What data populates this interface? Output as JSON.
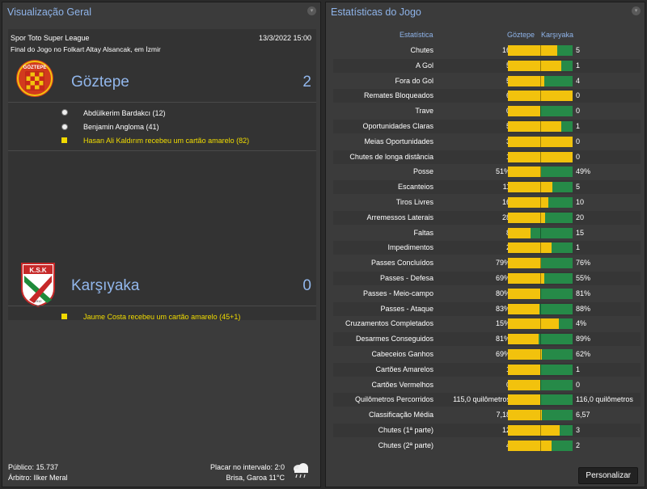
{
  "colors": {
    "accent": "#8fb4ea",
    "bar_home": "#f2c20d",
    "bar_away": "#268a48",
    "card_yellow": "#f1d900"
  },
  "overview": {
    "title": "Visualização Geral",
    "competition": "Spor Toto Super League",
    "datetime": "13/3/2022 15:00",
    "venue": "Final do Jogo no Folkart Altay Alsancak, em İzmir",
    "home": {
      "name": "Göztepe",
      "crest_text": "GÖZTEPE",
      "score": "2",
      "events": [
        {
          "icon": "ball-icon",
          "text": "Abdülkerim Bardakcı (12)",
          "highlight": false
        },
        {
          "icon": "ball-icon",
          "text": "Benjamin Angloma (41)",
          "highlight": false
        },
        {
          "icon": "yellow-card-icon",
          "text": "Hasan Ali Kaldırım recebeu um cartão amarelo (82)",
          "highlight": true
        }
      ]
    },
    "away": {
      "name": "Karşıyaka",
      "crest_text": "K.S.K",
      "crest_year": "1912",
      "score": "0",
      "events": [
        {
          "icon": "yellow-card-icon",
          "text": "Jaume Costa recebeu um cartão amarelo (45+1)",
          "highlight": true
        }
      ]
    },
    "footer": {
      "attendance": "Público: 15.737",
      "referee": "Árbitro: Ilker Meral",
      "halftime": "Placar no intervalo: 2:0",
      "weather": "Brisa, Garoa 11°C"
    }
  },
  "stats": {
    "title": "Estatísticas do Jogo",
    "header_label": "Estatística",
    "header_home": "Göztepe",
    "header_away": "Karşıyaka",
    "customize_label": "Personalizar",
    "rows": [
      {
        "label": "Chutes",
        "home": "16",
        "away": "5",
        "home_share": 0.76
      },
      {
        "label": "A Gol",
        "home": "5",
        "away": "1",
        "home_share": 0.83
      },
      {
        "label": "Fora do Gol",
        "home": "5",
        "away": "4",
        "home_share": 0.56
      },
      {
        "label": "Remates Bloqueados",
        "home": "6",
        "away": "0",
        "home_share": 1.0
      },
      {
        "label": "Trave",
        "home": "0",
        "away": "0",
        "home_share": 0.5
      },
      {
        "label": "Oportunidades Claras",
        "home": "5",
        "away": "1",
        "home_share": 0.83
      },
      {
        "label": "Meias Oportunidades",
        "home": "3",
        "away": "0",
        "home_share": 1.0
      },
      {
        "label": "Chutes de longa distância",
        "home": "1",
        "away": "0",
        "home_share": 1.0
      },
      {
        "label": "Posse",
        "home": "51%",
        "away": "49%",
        "home_share": 0.51
      },
      {
        "label": "Escanteios",
        "home": "11",
        "away": "5",
        "home_share": 0.69
      },
      {
        "label": "Tiros Livres",
        "home": "16",
        "away": "10",
        "home_share": 0.62
      },
      {
        "label": "Arremessos Laterais",
        "home": "28",
        "away": "20",
        "home_share": 0.58
      },
      {
        "label": "Faltas",
        "home": "8",
        "away": "15",
        "home_share": 0.35
      },
      {
        "label": "Impedimentos",
        "home": "2",
        "away": "1",
        "home_share": 0.67
      },
      {
        "label": "Passes Concluídos",
        "home": "79%",
        "away": "76%",
        "home_share": 0.51
      },
      {
        "label": "Passes - Defesa",
        "home": "69%",
        "away": "55%",
        "home_share": 0.56
      },
      {
        "label": "Passes - Meio-campo",
        "home": "80%",
        "away": "81%",
        "home_share": 0.5
      },
      {
        "label": "Passes - Ataque",
        "home": "83%",
        "away": "88%",
        "home_share": 0.49
      },
      {
        "label": "Cruzamentos Completados",
        "home": "15%",
        "away": "4%",
        "home_share": 0.79
      },
      {
        "label": "Desarmes Conseguidos",
        "home": "81%",
        "away": "89%",
        "home_share": 0.48
      },
      {
        "label": "Cabeceios Ganhos",
        "home": "69%",
        "away": "62%",
        "home_share": 0.53
      },
      {
        "label": "Cartões Amarelos",
        "home": "1",
        "away": "1",
        "home_share": 0.5
      },
      {
        "label": "Cartões Vermelhos",
        "home": "0",
        "away": "0",
        "home_share": 0.5
      },
      {
        "label": "Quilômetros Percorridos",
        "home": "115,0 quilômetros",
        "away": "116,0 quilômetros",
        "home_share": 0.5
      },
      {
        "label": "Classificação Média",
        "home": "7,18",
        "away": "6,57",
        "home_share": 0.52
      },
      {
        "label": "Chutes (1ª parte)",
        "home": "12",
        "away": "3",
        "home_share": 0.8
      },
      {
        "label": "Chutes (2ª parte)",
        "home": "4",
        "away": "2",
        "home_share": 0.67
      }
    ]
  }
}
